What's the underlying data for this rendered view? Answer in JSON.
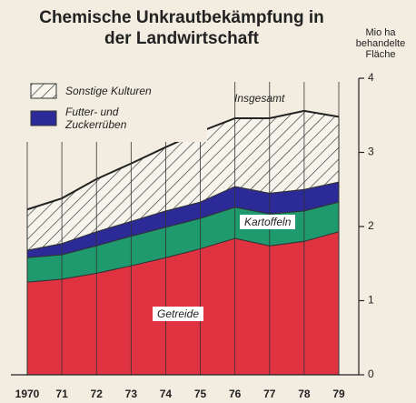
{
  "chart_data": {
    "type": "stacked_area",
    "title": "Chemische Unkrautbekämpfung in der Landwirtschaft",
    "y_axis_label": "Mio ha behandelte Fläche",
    "annotations": [
      {
        "text": "Insgesamt"
      }
    ],
    "categories": [
      "1970",
      "71",
      "72",
      "73",
      "74",
      "75",
      "76",
      "77",
      "78",
      "79"
    ],
    "series": [
      {
        "name": "Getreide",
        "color": "#df3341",
        "values": [
          1.25,
          1.29,
          1.37,
          1.47,
          1.58,
          1.7,
          1.84,
          1.74,
          1.8,
          1.93
        ]
      },
      {
        "name": "Kartoffeln",
        "color": "#1f9a6e",
        "values": [
          0.33,
          0.33,
          0.37,
          0.4,
          0.41,
          0.41,
          0.42,
          0.43,
          0.41,
          0.4
        ]
      },
      {
        "name": "Futter- und Zuckerrüben",
        "color": "#2b2a96",
        "values": [
          0.1,
          0.15,
          0.19,
          0.2,
          0.22,
          0.22,
          0.28,
          0.28,
          0.29,
          0.27
        ]
      },
      {
        "name": "Sonstige Kulturen",
        "color": "hatch",
        "values": [
          0.55,
          0.61,
          0.71,
          0.78,
          0.86,
          0.95,
          0.92,
          1.01,
          1.06,
          0.88
        ]
      }
    ],
    "ylim": [
      0,
      4
    ],
    "yticks": [
      0,
      1,
      2,
      3,
      4
    ]
  }
}
